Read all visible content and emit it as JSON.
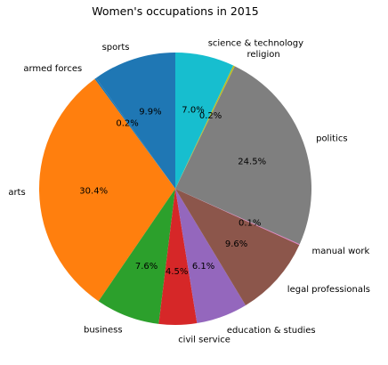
{
  "chart_data": {
    "type": "pie",
    "title": "Women's occupations in 2015",
    "start_angle_deg": 90,
    "direction": "counterclockwise",
    "slices": [
      {
        "label": "sports",
        "value": 9.9,
        "pct_label": "9.9%",
        "color": "#1f77b4"
      },
      {
        "label": "armed forces",
        "value": 0.2,
        "pct_label": "0.2%",
        "color": "#1f77b4"
      },
      {
        "label": "arts",
        "value": 30.4,
        "pct_label": "30.4%",
        "color": "#ff7f0e"
      },
      {
        "label": "business",
        "value": 7.6,
        "pct_label": "7.6%",
        "color": "#2ca02c"
      },
      {
        "label": "civil service",
        "value": 4.5,
        "pct_label": "4.5%",
        "color": "#d62728"
      },
      {
        "label": "education & studies",
        "value": 6.1,
        "pct_label": "6.1%",
        "color": "#9467bd"
      },
      {
        "label": "legal professionals",
        "value": 9.6,
        "pct_label": "9.6%",
        "color": "#8c564b"
      },
      {
        "label": "manual work",
        "value": 0.1,
        "pct_label": "0.1%",
        "color": "#e377c2"
      },
      {
        "label": "politics",
        "value": 24.5,
        "pct_label": "24.5%",
        "color": "#7f7f7f"
      },
      {
        "label": "religion",
        "value": 0.2,
        "pct_label": "0.2%",
        "color": "#bcbd22"
      },
      {
        "label": "science & technology",
        "value": 7.0,
        "pct_label": "7.0%",
        "color": "#17becf"
      }
    ]
  }
}
